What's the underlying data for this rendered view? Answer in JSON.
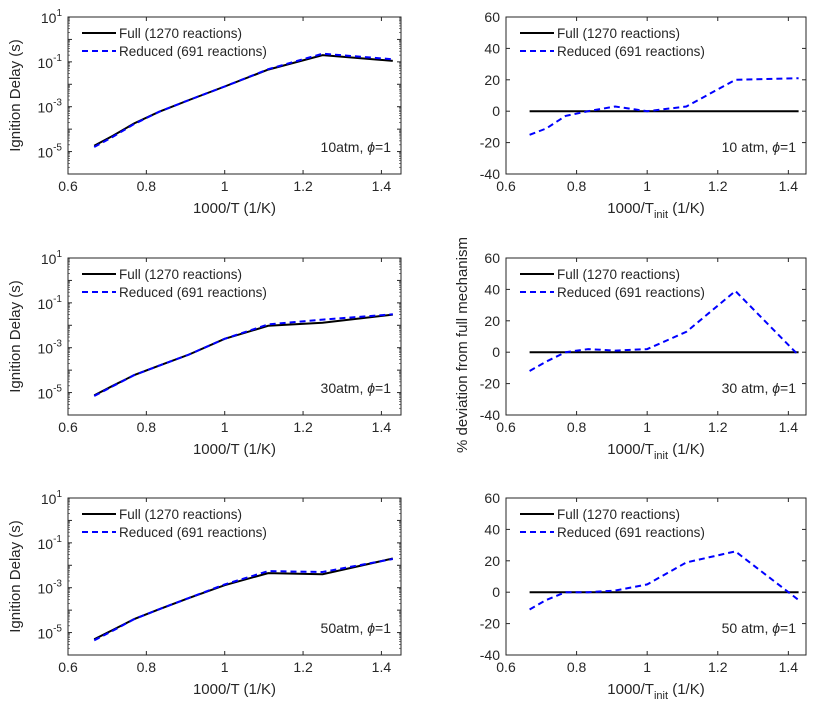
{
  "figure": {
    "shared_ylabel": "% deviation from full mechanism"
  },
  "chart_data": [
    {
      "type": "line",
      "position": "row1-left",
      "xlabel": "1000/T (1/K)",
      "ylabel": "Ignition Delay (s)",
      "yscale": "log",
      "xlim": [
        0.6,
        1.45
      ],
      "ylim": [
        1e-06,
        10
      ],
      "xticks": [
        "0.6",
        "0.8",
        "1",
        "1.2",
        "1.4"
      ],
      "yticks": [
        {
          "base": "10",
          "exp": "-5"
        },
        {
          "base": "10",
          "exp": "-3"
        },
        {
          "base": "10",
          "exp": "-1"
        },
        {
          "base": "10",
          "exp": "1"
        }
      ],
      "annotation": {
        "text": "10atm, ",
        "symbol": "ϕ",
        "suffix": "=1"
      },
      "legend": {
        "location": "top-left",
        "box": false
      },
      "x": [
        0.667,
        0.714,
        0.769,
        0.833,
        0.909,
        1.0,
        1.111,
        1.25,
        1.429
      ],
      "series": [
        {
          "name": "Full (1270 reactions)",
          "color": "#000000",
          "dash": "solid",
          "values": [
            1.8e-05,
            5e-05,
            0.00018,
            0.0006,
            0.002,
            0.008,
            0.045,
            0.2,
            0.11
          ]
        },
        {
          "name": "Reduced (691 reactions)",
          "color": "#0000ff",
          "dash": "dashed",
          "values": [
            1.6e-05,
            4.5e-05,
            0.00017,
            0.0006,
            0.002,
            0.008,
            0.047,
            0.23,
            0.13
          ]
        }
      ]
    },
    {
      "type": "line",
      "position": "row1-right",
      "xlabel": "1000/T",
      "xlabel_sub": "init",
      "xlabel_suffix": " (1/K)",
      "ylabel": "",
      "yscale": "linear",
      "xlim": [
        0.6,
        1.45
      ],
      "ylim": [
        -40,
        60
      ],
      "xticks": [
        "0.6",
        "0.8",
        "1",
        "1.2",
        "1.4"
      ],
      "yticks": [
        "-40",
        "-20",
        "0",
        "20",
        "40",
        "60"
      ],
      "annotation": {
        "text": "10 atm, ",
        "symbol": "ϕ",
        "suffix": "=1"
      },
      "legend": {
        "location": "top-left",
        "box": false
      },
      "x": [
        0.667,
        0.714,
        0.769,
        0.833,
        0.909,
        1.0,
        1.111,
        1.25,
        1.429
      ],
      "series": [
        {
          "name": "Full (1270 reactions)",
          "color": "#000000",
          "dash": "solid",
          "values": [
            0,
            0,
            0,
            0,
            0,
            0,
            0,
            0,
            0
          ]
        },
        {
          "name": "Reduced (691 reactions)",
          "color": "#0000ff",
          "dash": "dashed",
          "values": [
            -15,
            -11,
            -3,
            0,
            3,
            0,
            3,
            20,
            21
          ]
        }
      ]
    },
    {
      "type": "line",
      "position": "row2-left",
      "xlabel": "1000/T (1/K)",
      "ylabel": "Ignition Delay (s)",
      "yscale": "log",
      "xlim": [
        0.6,
        1.45
      ],
      "ylim": [
        1e-06,
        10
      ],
      "xticks": [
        "0.6",
        "0.8",
        "1",
        "1.2",
        "1.4"
      ],
      "yticks": [
        {
          "base": "10",
          "exp": "-5"
        },
        {
          "base": "10",
          "exp": "-3"
        },
        {
          "base": "10",
          "exp": "-1"
        },
        {
          "base": "10",
          "exp": "1"
        }
      ],
      "annotation": {
        "text": "30atm, ",
        "symbol": "ϕ",
        "suffix": "=1"
      },
      "legend": {
        "location": "top-left",
        "box": false
      },
      "x": [
        0.667,
        0.714,
        0.769,
        0.833,
        0.909,
        1.0,
        1.111,
        1.25,
        1.429
      ],
      "series": [
        {
          "name": "Full (1270 reactions)",
          "color": "#000000",
          "dash": "solid",
          "values": [
            7.5e-06,
            2e-05,
            6e-05,
            0.00016,
            0.0005,
            0.0025,
            0.0095,
            0.013,
            0.03
          ]
        },
        {
          "name": "Reduced (691 reactions)",
          "color": "#0000ff",
          "dash": "dashed",
          "values": [
            7e-06,
            1.9e-05,
            6e-05,
            0.00016,
            0.0005,
            0.0025,
            0.011,
            0.018,
            0.031
          ]
        }
      ]
    },
    {
      "type": "line",
      "position": "row2-right",
      "xlabel": "1000/T",
      "xlabel_sub": "init",
      "xlabel_suffix": " (1/K)",
      "ylabel": "",
      "yscale": "linear",
      "xlim": [
        0.6,
        1.45
      ],
      "ylim": [
        -40,
        60
      ],
      "xticks": [
        "0.6",
        "0.8",
        "1",
        "1.2",
        "1.4"
      ],
      "yticks": [
        "-40",
        "-20",
        "0",
        "20",
        "40",
        "60"
      ],
      "annotation": {
        "text": "30 atm, ",
        "symbol": "ϕ",
        "suffix": "=1"
      },
      "legend": {
        "location": "top-left",
        "box": false
      },
      "x": [
        0.667,
        0.714,
        0.769,
        0.833,
        0.909,
        1.0,
        1.111,
        1.25,
        1.429
      ],
      "series": [
        {
          "name": "Full (1270 reactions)",
          "color": "#000000",
          "dash": "solid",
          "values": [
            0,
            0,
            0,
            0,
            0,
            0,
            0,
            0,
            0
          ]
        },
        {
          "name": "Reduced (691 reactions)",
          "color": "#0000ff",
          "dash": "dashed",
          "values": [
            -12,
            -6,
            0,
            2,
            1,
            2,
            13,
            39,
            -2
          ]
        }
      ]
    },
    {
      "type": "line",
      "position": "row3-left",
      "xlabel": "1000/T (1/K)",
      "ylabel": "Ignition Delay (s)",
      "yscale": "log",
      "xlim": [
        0.6,
        1.45
      ],
      "ylim": [
        1e-06,
        10
      ],
      "xticks": [
        "0.6",
        "0.8",
        "1",
        "1.2",
        "1.4"
      ],
      "yticks": [
        {
          "base": "10",
          "exp": "-5"
        },
        {
          "base": "10",
          "exp": "-3"
        },
        {
          "base": "10",
          "exp": "-1"
        },
        {
          "base": "10",
          "exp": "1"
        }
      ],
      "annotation": {
        "text": "50atm, ",
        "symbol": "ϕ",
        "suffix": "=1"
      },
      "legend": {
        "location": "top-left",
        "box": false
      },
      "x": [
        0.667,
        0.714,
        0.769,
        0.833,
        0.909,
        1.0,
        1.111,
        1.25,
        1.429
      ],
      "series": [
        {
          "name": "Full (1270 reactions)",
          "color": "#000000",
          "dash": "solid",
          "values": [
            5e-06,
            1.3e-05,
            4e-05,
            0.00011,
            0.00035,
            0.0013,
            0.0045,
            0.004,
            0.02
          ]
        },
        {
          "name": "Reduced (691 reactions)",
          "color": "#0000ff",
          "dash": "dashed",
          "values": [
            4.5e-06,
            1.2e-05,
            4e-05,
            0.00011,
            0.00035,
            0.0014,
            0.0055,
            0.005,
            0.019
          ]
        }
      ]
    },
    {
      "type": "line",
      "position": "row3-right",
      "xlabel": "1000/T",
      "xlabel_sub": "init",
      "xlabel_suffix": " (1/K)",
      "ylabel": "",
      "yscale": "linear",
      "xlim": [
        0.6,
        1.45
      ],
      "ylim": [
        -40,
        60
      ],
      "xticks": [
        "0.6",
        "0.8",
        "1",
        "1.2",
        "1.4"
      ],
      "yticks": [
        "-40",
        "-20",
        "0",
        "20",
        "40",
        "60"
      ],
      "annotation": {
        "text": "50 atm, ",
        "symbol": "ϕ",
        "suffix": "=1"
      },
      "legend": {
        "location": "top-left",
        "box": false
      },
      "x": [
        0.667,
        0.714,
        0.769,
        0.833,
        0.909,
        1.0,
        1.111,
        1.25,
        1.429
      ],
      "series": [
        {
          "name": "Full (1270 reactions)",
          "color": "#000000",
          "dash": "solid",
          "values": [
            0,
            0,
            0,
            0,
            0,
            0,
            0,
            0,
            0
          ]
        },
        {
          "name": "Reduced (691 reactions)",
          "color": "#0000ff",
          "dash": "dashed",
          "values": [
            -11,
            -5,
            0,
            0,
            1,
            5,
            19,
            26,
            -5
          ]
        }
      ]
    }
  ]
}
